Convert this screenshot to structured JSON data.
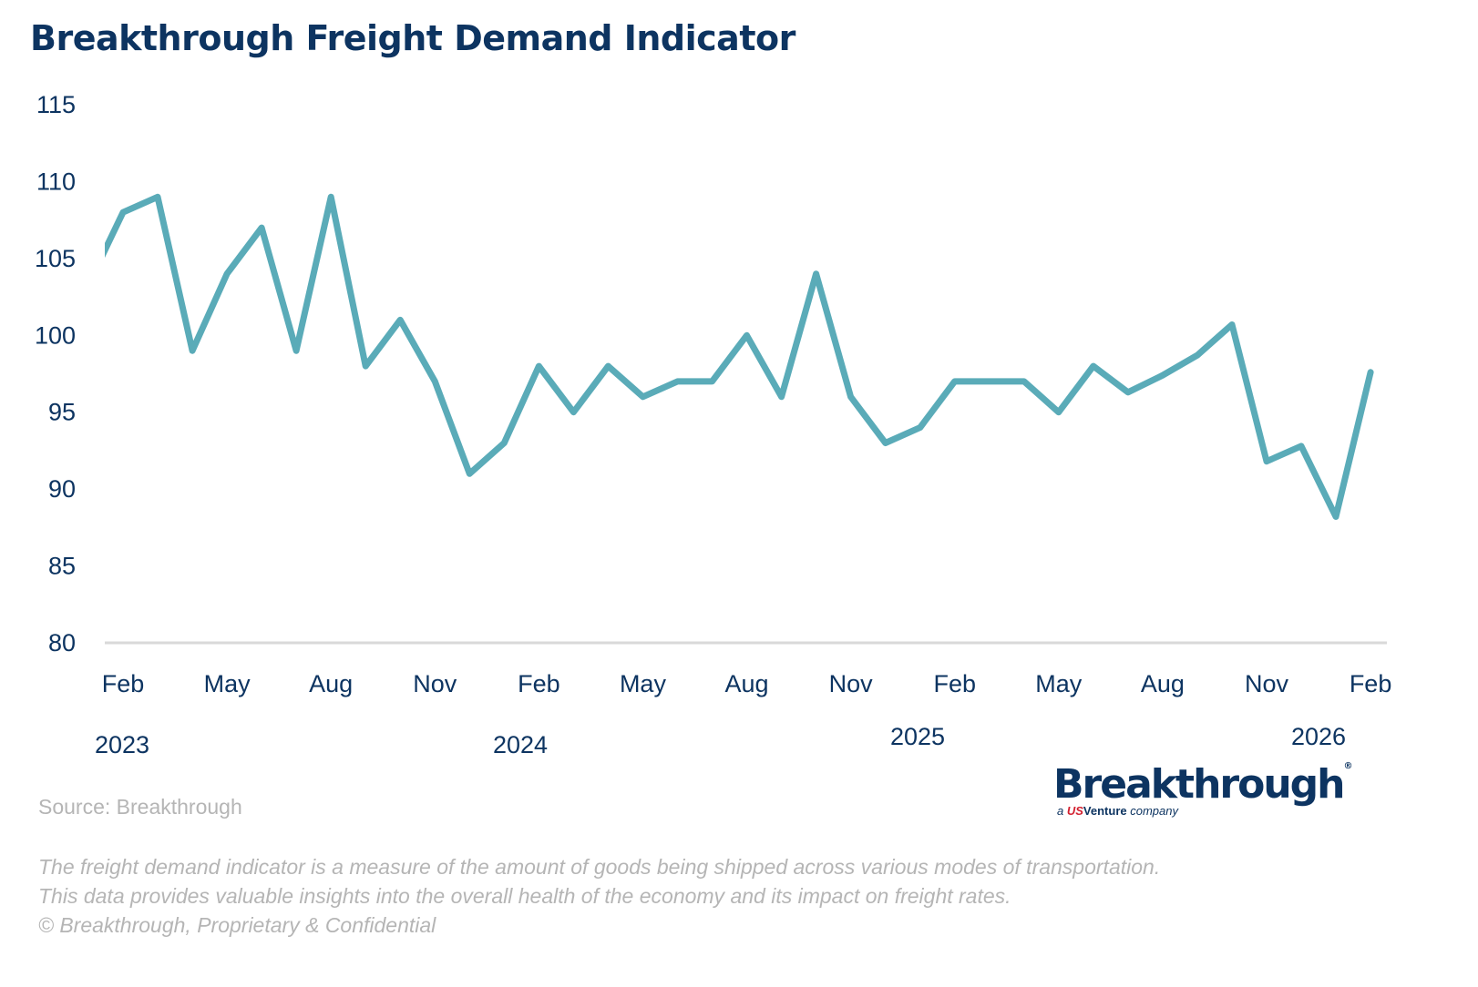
{
  "chart_data": {
    "type": "line",
    "title": "Breakthrough Freight Demand Indicator",
    "xlabel": "",
    "ylabel": "",
    "ylim": [
      80,
      115
    ],
    "yticks": [
      "80",
      "85",
      "90",
      "95",
      "100",
      "105",
      "110",
      "115"
    ],
    "x": [
      "2023-01",
      "2023-02",
      "2023-03",
      "2023-04",
      "2023-05",
      "2023-06",
      "2023-07",
      "2023-08",
      "2023-09",
      "2023-10",
      "2023-11",
      "2023-12",
      "2024-01",
      "2024-02",
      "2024-03",
      "2024-04",
      "2024-05",
      "2024-06",
      "2024-07",
      "2024-08",
      "2024-09",
      "2024-10",
      "2024-11",
      "2024-12",
      "2025-01",
      "2025-02",
      "2025-03",
      "2025-04",
      "2025-05",
      "2025-06",
      "2025-07",
      "2025-08",
      "2025-09",
      "2025-10",
      "2025-11",
      "2025-12",
      "2026-01",
      "2026-02"
    ],
    "values": [
      103.3,
      108,
      109,
      99,
      104,
      107,
      99,
      109,
      98,
      101,
      97,
      91,
      93,
      98,
      95,
      98,
      96,
      97,
      97,
      100,
      96,
      104,
      96,
      93,
      94,
      97,
      97,
      97,
      95,
      98,
      96.3,
      97.4,
      98.7,
      100.7,
      91.8,
      92.8,
      88.2,
      97.6
    ],
    "xtick_labels": [
      "Feb",
      "May",
      "Aug",
      "Nov",
      "Feb",
      "May",
      "Aug",
      "Nov",
      "Feb",
      "May",
      "Aug",
      "Nov",
      "Feb"
    ],
    "year_labels": [
      "2023",
      "2024",
      "2025",
      "2026"
    ],
    "grid": false,
    "line_color": "#5aabb8",
    "axis_color": "#d9d9d9",
    "text_color": "#0d3461"
  },
  "source": "Source: Breakthrough",
  "notes": [
    "The freight demand indicator is a measure of the amount of goods being shipped across various modes of transportation.",
    "This data provides valuable insights into the overall health of the economy and its impact on freight rates.",
    "© Breakthrough, Proprietary & Confidential"
  ],
  "logo": {
    "name": "Breakthrough",
    "reg": "®",
    "sub_a": "a",
    "sub_us": "US",
    "sub_venture": "Venture",
    "sub_company": "company"
  }
}
